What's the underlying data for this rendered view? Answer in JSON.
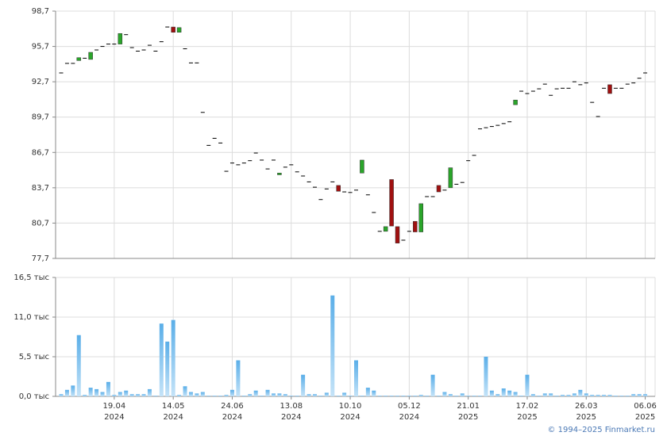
{
  "chart_data": [
    {
      "type": "candlestick",
      "up_color": "#2aa52a",
      "down_color": "#a01010",
      "flat_color": "#000000",
      "ylim": [
        77.7,
        98.7
      ],
      "yticks": [
        {
          "value": 77.7,
          "label": "77,7"
        },
        {
          "value": 80.7,
          "label": "80,7"
        },
        {
          "value": 83.7,
          "label": "83,7"
        },
        {
          "value": 86.7,
          "label": "86,7"
        },
        {
          "value": 89.7,
          "label": "89,7"
        },
        {
          "value": 92.7,
          "label": "92,7"
        },
        {
          "value": 95.7,
          "label": "95,7"
        },
        {
          "value": 98.7,
          "label": "98,7"
        }
      ],
      "grid": true,
      "open": [
        93.45,
        94.26,
        94.26,
        94.5,
        94.7,
        94.6,
        95.4,
        95.7,
        95.9,
        95.9,
        95.9,
        96.7,
        95.6,
        95.3,
        95.4,
        95.8,
        95.3,
        96.1,
        97.35,
        97.35,
        96.9,
        95.5,
        94.3,
        94.3,
        90.1,
        87.3,
        87.9,
        87.5,
        85.1,
        85.8,
        85.65,
        85.8,
        86.0,
        86.65,
        86.05,
        85.3,
        86.05,
        84.8,
        85.45,
        85.65,
        85.05,
        84.7,
        84.2,
        83.75,
        82.7,
        83.6,
        84.2,
        83.9,
        83.35,
        83.3,
        83.5,
        84.95,
        83.1,
        81.6,
        80.0,
        80.0,
        84.4,
        80.4,
        79.25,
        80.0,
        80.85,
        79.95,
        82.95,
        82.95,
        83.9,
        83.5,
        83.7,
        84.0,
        84.15,
        86.0,
        86.45,
        88.7,
        88.8,
        88.9,
        89.0,
        89.15,
        89.3,
        90.75,
        91.9,
        91.7,
        91.9,
        92.1,
        92.5,
        91.55,
        92.1,
        92.15,
        92.15,
        92.7,
        92.45,
        92.6,
        90.95,
        89.75,
        92.15,
        92.45,
        92.15,
        92.15,
        92.5,
        92.6,
        93.0,
        93.45
      ],
      "close": [
        93.45,
        94.26,
        94.26,
        94.75,
        94.7,
        95.2,
        95.4,
        95.7,
        95.9,
        95.9,
        96.8,
        96.7,
        95.6,
        95.3,
        95.4,
        95.8,
        95.3,
        96.1,
        97.35,
        96.9,
        97.3,
        95.5,
        94.3,
        94.3,
        90.1,
        87.3,
        87.9,
        87.5,
        85.1,
        85.8,
        85.65,
        85.8,
        86.0,
        86.65,
        86.05,
        85.3,
        86.05,
        84.95,
        85.45,
        85.65,
        85.05,
        84.7,
        84.2,
        83.75,
        82.7,
        83.6,
        84.2,
        83.4,
        83.35,
        83.3,
        83.5,
        86.05,
        83.1,
        81.6,
        80.0,
        80.4,
        80.45,
        79.0,
        79.25,
        80.0,
        79.95,
        82.35,
        82.95,
        82.95,
        83.35,
        83.5,
        85.4,
        84.0,
        84.15,
        86.0,
        86.45,
        88.7,
        88.8,
        88.9,
        89.0,
        89.15,
        89.3,
        91.15,
        91.9,
        91.7,
        91.9,
        92.1,
        92.5,
        91.55,
        92.1,
        92.15,
        92.15,
        92.7,
        92.45,
        92.6,
        90.95,
        89.75,
        92.15,
        91.7,
        92.15,
        92.15,
        92.5,
        92.6,
        93.0,
        93.45
      ]
    },
    {
      "type": "bar",
      "color": "#7cc0ee",
      "ylim": [
        0,
        16.5
      ],
      "yticks": [
        {
          "value": 0,
          "label": "0,0 тыс"
        },
        {
          "value": 5.5,
          "label": "5,5 тыс"
        },
        {
          "value": 11,
          "label": "11,0 тыс"
        },
        {
          "value": 16.5,
          "label": "16,5 тыс"
        }
      ],
      "grid": true,
      "categories": [
        null,
        null,
        null,
        null,
        null,
        null,
        null,
        null,
        null,
        "19.04 2024",
        null,
        null,
        null,
        null,
        null,
        null,
        null,
        null,
        null,
        "14.05 2024",
        null,
        null,
        null,
        null,
        null,
        null,
        null,
        null,
        null,
        "24.06 2024",
        null,
        null,
        null,
        null,
        null,
        null,
        null,
        null,
        null,
        "13.08 2024",
        null,
        null,
        null,
        null,
        null,
        null,
        null,
        null,
        null,
        "10.10 2024",
        null,
        null,
        null,
        null,
        null,
        null,
        null,
        null,
        null,
        "05.12 2024",
        null,
        null,
        null,
        null,
        null,
        null,
        null,
        null,
        null,
        "21.01 2025",
        null,
        null,
        null,
        null,
        null,
        null,
        null,
        null,
        null,
        "17.02 2025",
        null,
        null,
        null,
        null,
        null,
        null,
        null,
        null,
        null,
        "26.03 2025",
        null,
        null,
        null,
        null,
        null,
        null,
        null,
        null,
        null,
        "06.06 2025"
      ],
      "values": [
        0.3,
        0.9,
        1.5,
        8.5,
        0.2,
        1.2,
        1.0,
        0.6,
        2.0,
        0.2,
        0.6,
        0.8,
        0.3,
        0.3,
        0.3,
        1.0,
        0.1,
        10.1,
        7.6,
        10.6,
        0.2,
        1.4,
        0.6,
        0.4,
        0.6,
        0.1,
        0.1,
        0.1,
        0.2,
        0.9,
        5.0,
        0.1,
        0.3,
        0.8,
        0.1,
        0.9,
        0.4,
        0.4,
        0.3,
        0.1,
        0.1,
        3.0,
        0.3,
        0.3,
        0.1,
        0.5,
        14.0,
        0.1,
        0.5,
        0.1,
        5.0,
        0.1,
        1.2,
        0.8,
        0.1,
        0.1,
        0.1,
        0.1,
        0.1,
        0.1,
        0.1,
        0.2,
        0.1,
        3.0,
        0.1,
        0.6,
        0.3,
        0.1,
        0.4,
        0.1,
        0.1,
        0.1,
        5.5,
        0.8,
        0.3,
        1.1,
        0.8,
        0.6,
        0.1,
        3.0,
        0.3,
        0.1,
        0.4,
        0.4,
        0.1,
        0.2,
        0.2,
        0.4,
        0.9,
        0.4,
        0.2,
        0.2,
        0.2,
        0.2,
        0.1,
        0.1,
        0.1,
        0.3,
        0.3,
        0.3
      ]
    }
  ],
  "copyright": "© 1994–2025 Finmarket.ru"
}
